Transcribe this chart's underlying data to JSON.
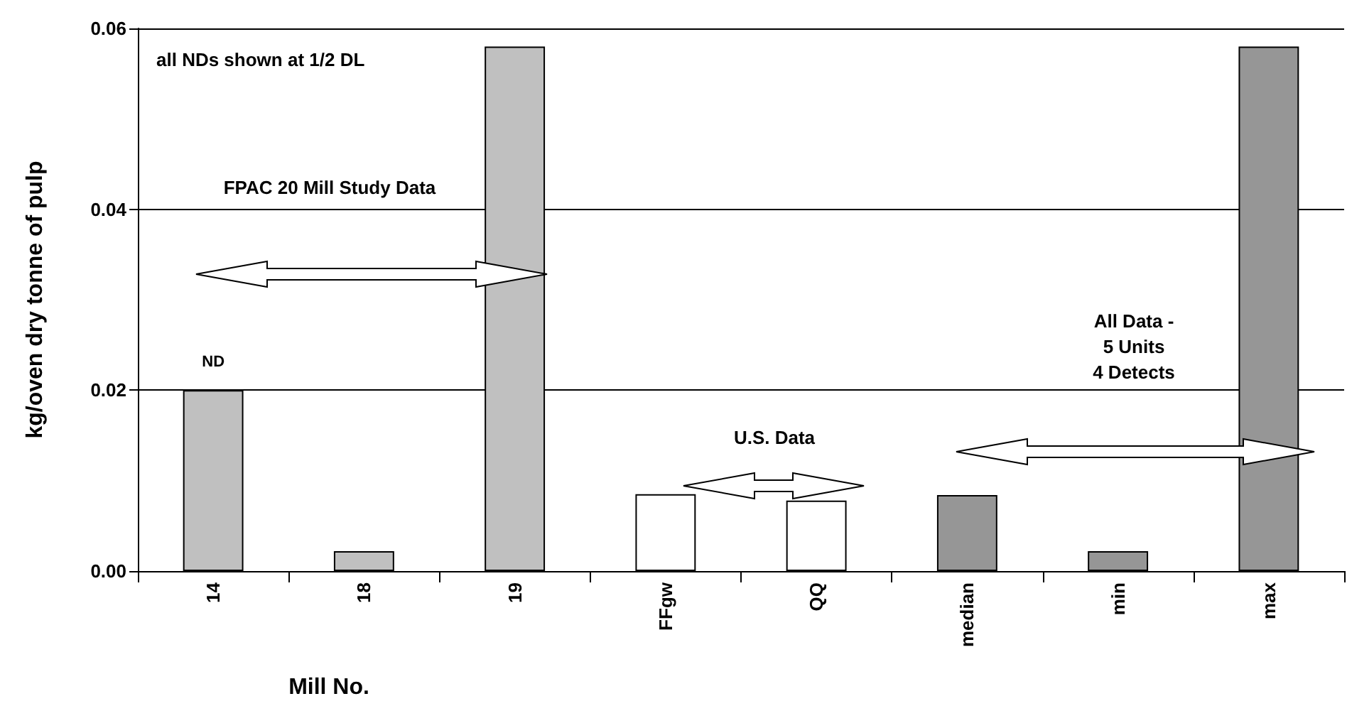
{
  "chart_data": {
    "type": "bar",
    "xlabel": "Mill No.",
    "ylabel": "kg/oven dry tonne of pulp",
    "categories": [
      "14",
      "18",
      "19",
      "FFgw",
      "QQ",
      "median",
      "min",
      "max"
    ],
    "values": [
      0.02,
      0.0022,
      0.058,
      0.0085,
      0.0078,
      0.0084,
      0.0022,
      0.058
    ],
    "colors": [
      "#c0c0c0",
      "#c0c0c0",
      "#c0c0c0",
      "#ffffff",
      "#ffffff",
      "#969696",
      "#969696",
      "#969696"
    ],
    "ylim": [
      0,
      0.06
    ],
    "yticks": [
      {
        "value": 0,
        "label": "0.00"
      },
      {
        "value": 0.02,
        "label": "0.02"
      },
      {
        "value": 0.04,
        "label": "0.04"
      },
      {
        "value": 0.06,
        "label": "0.06"
      }
    ],
    "grid": "y",
    "annotations": [
      "all NDs shown at 1/2 DL",
      "FPAC 20 Mill Study Data",
      "U.S. Data",
      "All Data -\n5 Units\n4 Detects",
      {
        "text": "ND",
        "x": "14",
        "y": 0.02
      }
    ]
  }
}
